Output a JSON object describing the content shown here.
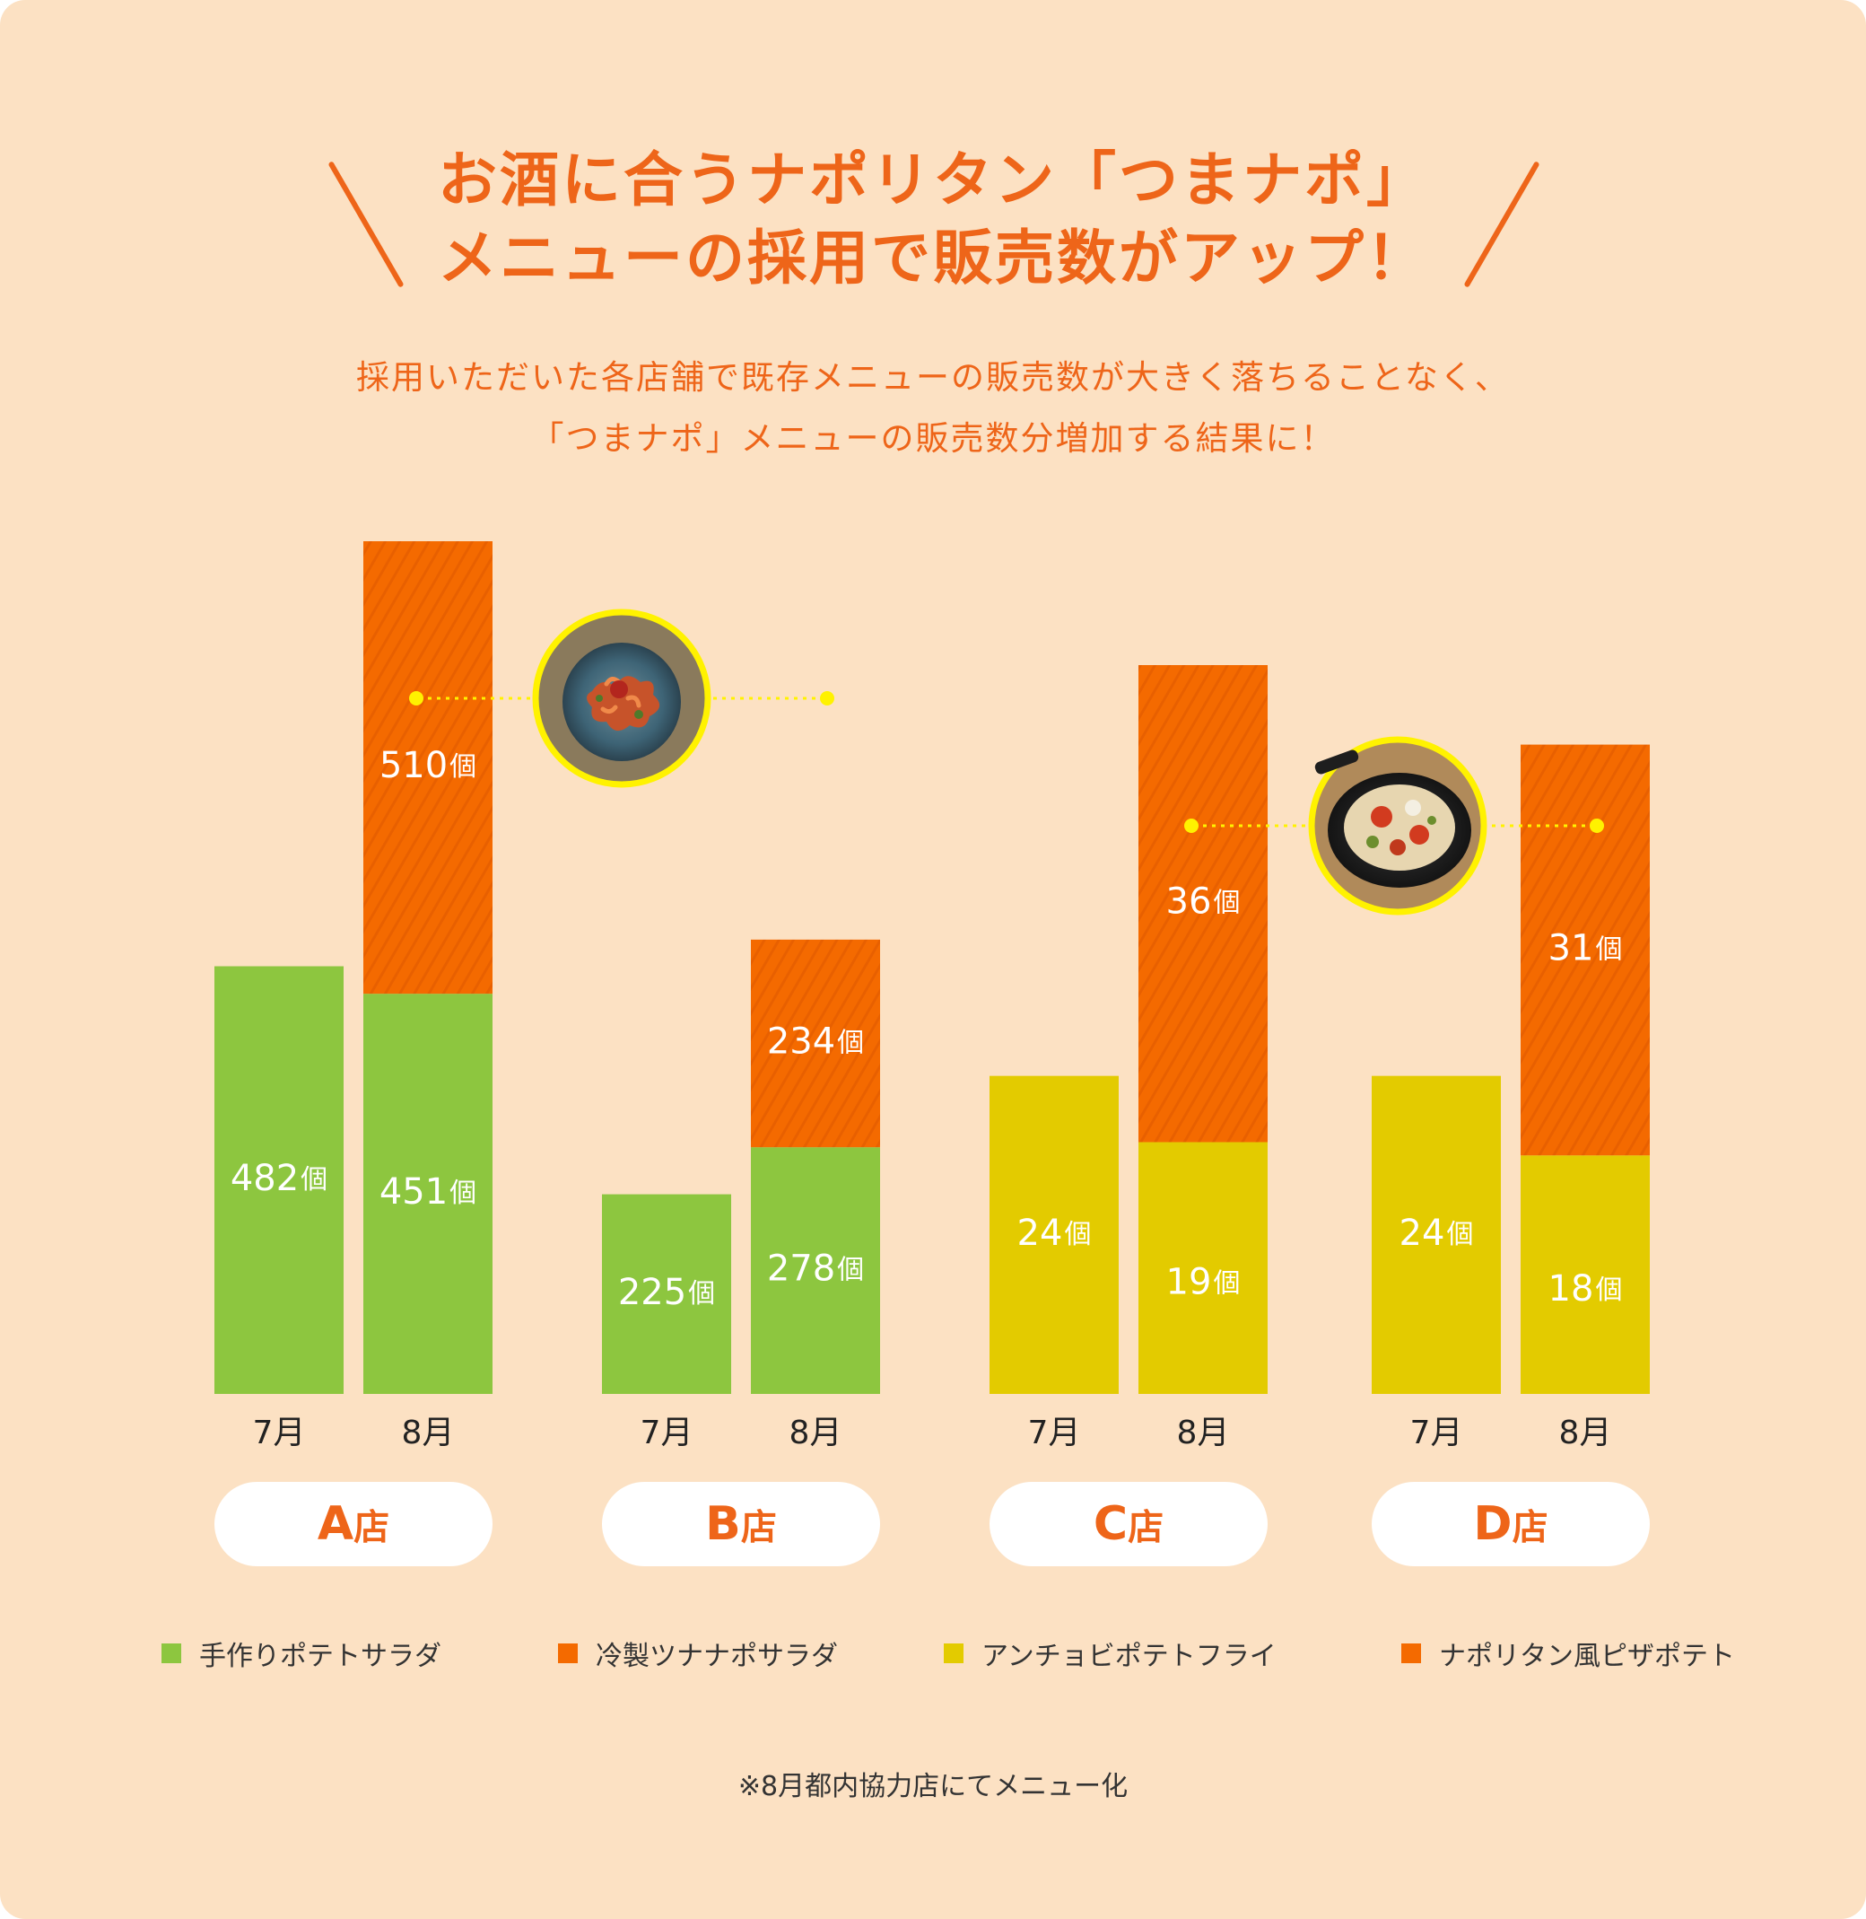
{
  "title": {
    "line1": "お酒に合うナポリタン「つまナポ」",
    "line2": "メニューの採用で販売数がアップ！"
  },
  "subtitle": {
    "line1": "採用いただいた各店舗で既存メニューの販売数が大きく落ちることなく、",
    "line2": "「つまナポ」メニューの販売数分増加する結果に！"
  },
  "colors": {
    "background": "#fce1c3",
    "accent": "#ee6519",
    "green": "#8dc63f",
    "orange": "#f46a00",
    "yellow": "#e3cb00",
    "photo_ring": "#fff200"
  },
  "legend": [
    {
      "label": "手作りポテトサラダ",
      "color": "#8dc63f"
    },
    {
      "label": "冷製ツナナポサラダ",
      "color": "#f46a00"
    },
    {
      "label": "アンチョビポテトフライ",
      "color": "#e3cb00"
    },
    {
      "label": "ナポリタン風ピザポテト",
      "color": "#f46a00"
    }
  ],
  "footnote": "※8月都内協力店にてメニュー化",
  "chart_data": {
    "type": "bar",
    "stacked": true,
    "unit": "個",
    "periods": [
      "7月",
      "8月"
    ],
    "stores": [
      {
        "name": "A",
        "suffix": "店",
        "base_series": "手作りポテトサラダ",
        "new_series": "冷製ツナナポサラダ",
        "base": [
          482,
          451
        ],
        "new": [
          0,
          510
        ]
      },
      {
        "name": "B",
        "suffix": "店",
        "base_series": "手作りポテトサラダ",
        "new_series": "冷製ツナナポサラダ",
        "base": [
          225,
          278
        ],
        "new": [
          0,
          234
        ]
      },
      {
        "name": "C",
        "suffix": "店",
        "base_series": "アンチョビポテトフライ",
        "new_series": "ナポリタン風ピザポテト",
        "base": [
          24,
          19
        ],
        "new": [
          0,
          36
        ]
      },
      {
        "name": "D",
        "suffix": "店",
        "base_series": "アンチョビポテトフライ",
        "new_series": "ナポリタン風ピザポテト",
        "base": [
          24,
          18
        ],
        "new": [
          0,
          31
        ]
      }
    ],
    "groups": [
      {
        "stores": [
          "A",
          "B"
        ],
        "photo": "pasta-dish"
      },
      {
        "stores": [
          "C",
          "D"
        ],
        "photo": "pizza-potato-skillet"
      }
    ]
  }
}
